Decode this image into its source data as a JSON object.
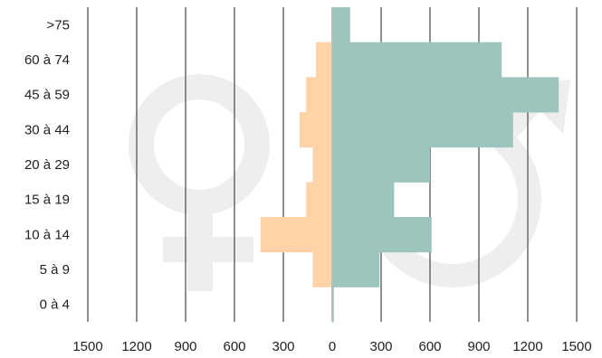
{
  "chart_data": {
    "type": "bar",
    "orientation": "horizontal",
    "layout": "population-pyramid",
    "categories": [
      ">75",
      "60 à 74",
      "45 à 59",
      "30 à 44",
      "20 à 29",
      "15 à 19",
      "10 à 14",
      "5 à 9",
      "0 à 4"
    ],
    "series": [
      {
        "side": "left",
        "color": "#ffd3a8",
        "values": [
          0,
          100,
          160,
          200,
          120,
          160,
          440,
          120,
          0
        ]
      },
      {
        "side": "right",
        "color": "#9dc5bd",
        "values": [
          110,
          1040,
          1390,
          1110,
          600,
          380,
          610,
          290,
          10
        ]
      }
    ],
    "x_ticks": [
      "1500",
      "1200",
      "900",
      "600",
      "300",
      "0",
      "300",
      "600",
      "900",
      "1200",
      "1500"
    ],
    "xlim": [
      -1500,
      1500
    ],
    "grid": "vertical",
    "background_icons": [
      "female-symbol-icon",
      "male-symbol-icon"
    ],
    "watermark_color": "#eeeeee",
    "axis_color": "#bbbbbb",
    "grid_color": "#555555"
  }
}
